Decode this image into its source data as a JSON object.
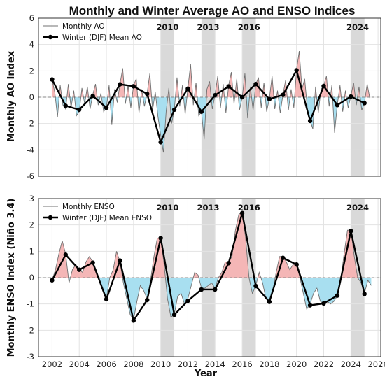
{
  "title": "Monthly and Winter Average AO and ENSO Indices",
  "xlabel": "Year",
  "colors": {
    "positive_fill": "#f4b6b6",
    "negative_fill": "#a8dff0",
    "monthly_line": "#707070",
    "winter_line": "#000000",
    "highlight": "#d9d9d9",
    "grid": "#e3e3e3",
    "zero_line": "#888888"
  },
  "chart_data": [
    {
      "type": "line",
      "ylabel": "Monthly AO Index",
      "xlim": [
        2001.0,
        2026.2
      ],
      "ylim": [
        -6,
        6
      ],
      "yticks": [
        -6,
        -4,
        -2,
        0,
        2,
        4,
        6
      ],
      "highlight_years": [
        2010,
        2013,
        2016,
        2024
      ],
      "legend": [
        "Monthly AO",
        "Winter (DJF) Mean AO"
      ],
      "legend_position": "upper-left",
      "monthly_series": {
        "name": "Monthly AO",
        "x": [
          2002.0,
          2002.2,
          2002.4,
          2002.6,
          2002.8,
          2003.0,
          2003.2,
          2003.4,
          2003.6,
          2003.8,
          2004.0,
          2004.2,
          2004.4,
          2004.6,
          2004.8,
          2005.0,
          2005.2,
          2005.4,
          2005.6,
          2005.8,
          2006.0,
          2006.2,
          2006.4,
          2006.6,
          2006.8,
          2007.0,
          2007.2,
          2007.4,
          2007.6,
          2007.8,
          2008.0,
          2008.2,
          2008.4,
          2008.6,
          2008.8,
          2009.0,
          2009.2,
          2009.4,
          2009.6,
          2009.8,
          2010.0,
          2010.2,
          2010.4,
          2010.6,
          2010.8,
          2011.0,
          2011.2,
          2011.4,
          2011.6,
          2011.8,
          2012.0,
          2012.2,
          2012.4,
          2012.6,
          2012.8,
          2013.0,
          2013.2,
          2013.4,
          2013.6,
          2013.8,
          2014.0,
          2014.2,
          2014.4,
          2014.6,
          2014.8,
          2015.0,
          2015.2,
          2015.4,
          2015.6,
          2015.8,
          2016.0,
          2016.2,
          2016.4,
          2016.6,
          2016.8,
          2017.0,
          2017.2,
          2017.4,
          2017.6,
          2017.8,
          2018.0,
          2018.2,
          2018.4,
          2018.6,
          2018.8,
          2019.0,
          2019.2,
          2019.4,
          2019.6,
          2019.8,
          2020.0,
          2020.2,
          2020.4,
          2020.6,
          2020.8,
          2021.0,
          2021.2,
          2021.4,
          2021.6,
          2021.8,
          2022.0,
          2022.2,
          2022.4,
          2022.6,
          2022.8,
          2023.0,
          2023.2,
          2023.4,
          2023.6,
          2023.8,
          2024.0,
          2024.2,
          2024.4,
          2024.6,
          2024.8,
          2025.0,
          2025.2,
          2025.4
        ],
        "values": [
          1.3,
          0.4,
          -1.5,
          0.9,
          -0.6,
          -0.9,
          1.0,
          -0.8,
          0.5,
          -1.4,
          -1.1,
          0.7,
          -0.5,
          0.8,
          -0.9,
          0.2,
          1.0,
          -0.6,
          0.3,
          -1.1,
          -0.8,
          0.9,
          -2.1,
          0.6,
          -0.4,
          1.0,
          2.2,
          -0.5,
          0.9,
          -0.8,
          0.9,
          1.4,
          -1.2,
          0.6,
          -0.7,
          0.3,
          1.8,
          -1.0,
          0.4,
          -1.5,
          -2.9,
          -4.2,
          -1.1,
          0.7,
          -2.0,
          -1.0,
          1.5,
          -0.7,
          0.9,
          -1.3,
          0.7,
          2.5,
          -0.6,
          1.1,
          -1.4,
          -1.1,
          -3.2,
          0.6,
          1.2,
          -0.9,
          0.2,
          1.6,
          -0.8,
          1.0,
          -1.2,
          0.9,
          1.9,
          -0.5,
          1.4,
          -1.0,
          0.0,
          1.8,
          -1.6,
          0.8,
          -1.0,
          1.0,
          1.5,
          -0.8,
          1.1,
          -1.1,
          -0.1,
          1.6,
          -0.9,
          0.5,
          -1.2,
          0.2,
          1.3,
          -1.0,
          0.6,
          -0.8,
          2.1,
          3.5,
          0.6,
          1.4,
          -0.9,
          -1.8,
          -2.4,
          0.8,
          -1.2,
          0.6,
          0.9,
          1.6,
          -0.7,
          0.9,
          -2.7,
          -0.6,
          0.9,
          -1.1,
          0.5,
          -0.8,
          0.1,
          1.1,
          -0.6,
          0.8,
          -1.0,
          -0.4,
          1.0,
          -0.1
        ]
      },
      "winter_series": {
        "name": "Winter (DJF) Mean AO",
        "x": [
          2002,
          2003,
          2004,
          2005,
          2006,
          2007,
          2008,
          2009,
          2010,
          2011,
          2012,
          2013,
          2014,
          2015,
          2016,
          2017,
          2018,
          2019,
          2020,
          2021,
          2022,
          2023,
          2024,
          2025
        ],
        "values": [
          1.35,
          -0.65,
          -0.95,
          0.1,
          -0.8,
          0.98,
          0.83,
          0.25,
          -3.42,
          -0.95,
          0.65,
          -1.1,
          0.15,
          0.82,
          0.0,
          1.0,
          -0.15,
          0.18,
          2.05,
          -1.8,
          0.85,
          -0.6,
          0.05,
          -0.45
        ]
      }
    },
    {
      "type": "line",
      "ylabel": "Monthly ENSO Index (Niño 3.4)",
      "xlim": [
        2001.0,
        2026.2
      ],
      "ylim": [
        -3,
        3
      ],
      "yticks": [
        -3,
        -2,
        -1,
        0,
        1,
        2,
        3
      ],
      "xticks": [
        2002,
        2004,
        2006,
        2008,
        2010,
        2012,
        2014,
        2016,
        2018,
        2020,
        2022,
        2024,
        2026
      ],
      "highlight_years": [
        2010,
        2013,
        2016,
        2024
      ],
      "legend": [
        "Monthly ENSO",
        "Winter (DJF) Mean ENSO"
      ],
      "legend_position": "upper-left",
      "monthly_series": {
        "name": "Monthly ENSO",
        "x": [
          2002.0,
          2002.25,
          2002.5,
          2002.75,
          2003.0,
          2003.25,
          2003.5,
          2003.75,
          2004.0,
          2004.25,
          2004.5,
          2004.75,
          2005.0,
          2005.25,
          2005.5,
          2005.75,
          2006.0,
          2006.25,
          2006.5,
          2006.75,
          2007.0,
          2007.25,
          2007.5,
          2007.75,
          2008.0,
          2008.25,
          2008.5,
          2008.75,
          2009.0,
          2009.25,
          2009.5,
          2009.75,
          2010.0,
          2010.25,
          2010.5,
          2010.75,
          2011.0,
          2011.25,
          2011.5,
          2011.75,
          2012.0,
          2012.25,
          2012.5,
          2012.75,
          2013.0,
          2013.25,
          2013.5,
          2013.75,
          2014.0,
          2014.25,
          2014.5,
          2014.75,
          2015.0,
          2015.25,
          2015.5,
          2015.75,
          2016.0,
          2016.25,
          2016.5,
          2016.75,
          2017.0,
          2017.25,
          2017.5,
          2017.75,
          2018.0,
          2018.25,
          2018.5,
          2018.75,
          2019.0,
          2019.25,
          2019.5,
          2019.75,
          2020.0,
          2020.25,
          2020.5,
          2020.75,
          2021.0,
          2021.25,
          2021.5,
          2021.75,
          2022.0,
          2022.25,
          2022.5,
          2022.75,
          2023.0,
          2023.25,
          2023.5,
          2023.75,
          2024.0,
          2024.25,
          2024.5,
          2024.75,
          2025.0,
          2025.25,
          2025.5
        ],
        "values": [
          -0.1,
          0.3,
          0.9,
          1.4,
          0.9,
          -0.2,
          0.3,
          0.5,
          0.3,
          0.2,
          0.6,
          0.8,
          0.6,
          0.3,
          -0.1,
          -0.5,
          -0.8,
          0.0,
          0.3,
          1.0,
          0.6,
          -0.2,
          -0.8,
          -1.4,
          -1.6,
          -0.9,
          -0.3,
          -0.5,
          -0.8,
          -0.1,
          0.8,
          1.5,
          1.5,
          0.5,
          -0.8,
          -1.5,
          -1.4,
          -0.7,
          -0.6,
          -1.0,
          -0.8,
          -0.3,
          0.2,
          0.1,
          -0.4,
          -0.4,
          -0.3,
          -0.2,
          -0.4,
          0.0,
          0.2,
          0.6,
          0.6,
          0.8,
          1.8,
          2.4,
          2.5,
          1.5,
          0.0,
          -0.6,
          -0.3,
          0.2,
          -0.2,
          -0.8,
          -0.9,
          -0.5,
          0.2,
          0.8,
          0.8,
          0.6,
          0.3,
          0.5,
          0.5,
          0.0,
          -0.6,
          -1.2,
          -1.0,
          -0.6,
          -0.4,
          -0.9,
          -1.0,
          -0.9,
          -1.0,
          -0.9,
          -0.7,
          -0.1,
          0.9,
          1.8,
          1.8,
          0.8,
          0.0,
          -0.2,
          -0.6,
          -0.1,
          -0.3
        ]
      },
      "winter_series": {
        "name": "Winter (DJF) Mean ENSO",
        "x": [
          2002,
          2003,
          2004,
          2005,
          2006,
          2007,
          2008,
          2009,
          2010,
          2011,
          2012,
          2013,
          2014,
          2015,
          2016,
          2017,
          2018,
          2019,
          2020,
          2021,
          2022,
          2023,
          2024,
          2025
        ],
        "values": [
          -0.1,
          0.87,
          0.3,
          0.57,
          -0.82,
          0.65,
          -1.63,
          -0.85,
          1.5,
          -1.41,
          -0.88,
          -0.45,
          -0.45,
          0.55,
          2.45,
          -0.32,
          -0.92,
          0.75,
          0.5,
          -1.05,
          -0.98,
          -0.68,
          1.77,
          -0.62
        ]
      }
    }
  ]
}
